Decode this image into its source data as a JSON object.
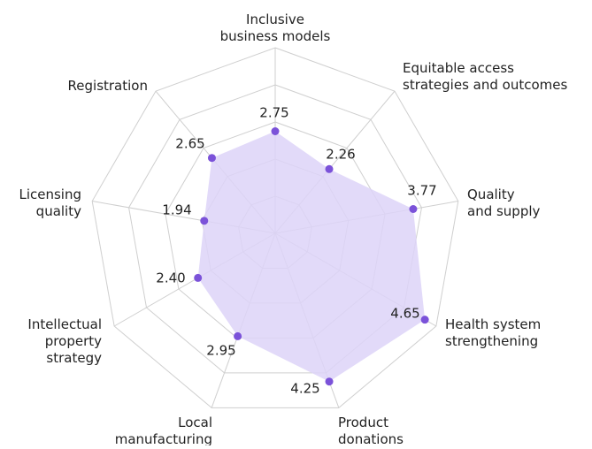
{
  "chart_data": {
    "type": "radar",
    "categories": [
      [
        "Inclusive",
        "business models"
      ],
      [
        "Equitable access",
        "strategies and outcomes"
      ],
      [
        "Quality",
        "and supply"
      ],
      [
        "Health system",
        "strengthening"
      ],
      [
        "Product",
        "donations"
      ],
      [
        "Local",
        "manufacturing"
      ],
      [
        "Intellectual",
        "property",
        "strategy"
      ],
      [
        "Licensing",
        "quality"
      ],
      [
        "Registration"
      ]
    ],
    "values": [
      2.75,
      2.26,
      3.77,
      4.65,
      4.25,
      2.95,
      2.4,
      1.94,
      2.65
    ],
    "value_labels": [
      "2.75",
      "2.26",
      "3.77",
      "4.65",
      "4.25",
      "2.95",
      "2.40",
      "1.94",
      "2.65"
    ],
    "color": "#7b52d9",
    "fill": "#ddd4f8",
    "rlim": [
      0,
      5
    ],
    "rticks": [
      1,
      2,
      3,
      4,
      5
    ],
    "grid": true
  }
}
